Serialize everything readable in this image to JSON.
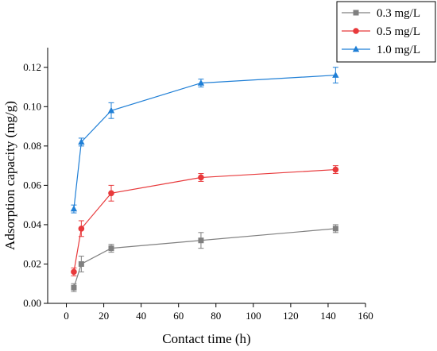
{
  "chart_data": {
    "type": "line",
    "title": "",
    "xlabel": "Contact time (h)",
    "ylabel": "Adsorption capacity (mg/g)",
    "xlim": [
      -10,
      160
    ],
    "ylim": [
      0,
      0.13
    ],
    "xticks": [
      0,
      20,
      40,
      60,
      80,
      100,
      120,
      140,
      160
    ],
    "yticks": [
      0.0,
      0.02,
      0.04,
      0.06,
      0.08,
      0.1,
      0.12
    ],
    "xtick_labels": [
      "0",
      "20",
      "40",
      "60",
      "80",
      "100",
      "120",
      "140",
      "160"
    ],
    "ytick_labels": [
      "0.00",
      "0.02",
      "0.04",
      "0.06",
      "0.08",
      "0.10",
      "0.12"
    ],
    "legend_position": "top-right-outside",
    "grid": false,
    "x": [
      4,
      8,
      24,
      72,
      144
    ],
    "series": [
      {
        "name": "0.3 mg/L",
        "color": "#808080",
        "marker": "square",
        "values": [
          0.008,
          0.02,
          0.028,
          0.032,
          0.038
        ],
        "errors": [
          0.002,
          0.004,
          0.002,
          0.004,
          0.002
        ]
      },
      {
        "name": "0.5 mg/L",
        "color": "#e8393b",
        "marker": "circle",
        "values": [
          0.016,
          0.038,
          0.056,
          0.064,
          0.068
        ],
        "errors": [
          0.002,
          0.004,
          0.004,
          0.002,
          0.002
        ]
      },
      {
        "name": "1.0 mg/L",
        "color": "#1f7fd6",
        "marker": "triangle",
        "values": [
          0.048,
          0.082,
          0.098,
          0.112,
          0.116
        ],
        "errors": [
          0.002,
          0.002,
          0.004,
          0.002,
          0.004
        ]
      }
    ]
  }
}
